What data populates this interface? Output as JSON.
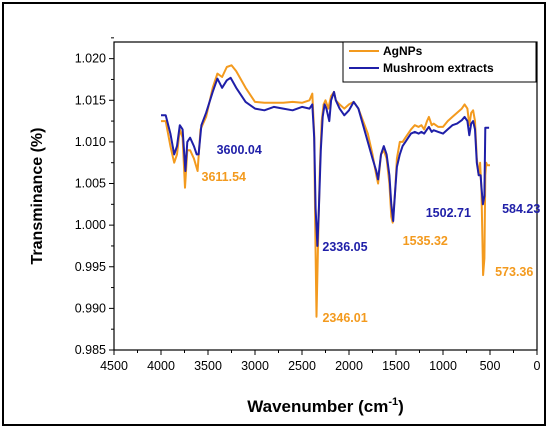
{
  "chart_data": {
    "type": "line",
    "xlabel": "Wavenumber (cm",
    "xlabel_sup": "-1",
    "xlabel_close": ")",
    "ylabel": "Transminance (%)",
    "xlim": [
      4500,
      0
    ],
    "ylim": [
      0.985,
      1.022
    ],
    "x_ticks": [
      4500,
      4000,
      3500,
      3000,
      2500,
      2000,
      1500,
      1000,
      500,
      0
    ],
    "x_tick_labels": [
      "4500",
      "4000",
      "3500",
      "3000",
      "2500",
      "2000",
      "1500",
      "1000",
      "500",
      "0"
    ],
    "y_ticks": [
      0.985,
      0.99,
      0.995,
      1.0,
      1.005,
      1.01,
      1.015,
      1.02
    ],
    "y_tick_labels": [
      "0.985",
      "0.990",
      "0.995",
      "1.000",
      "1.005",
      "1.010",
      "1.015",
      "1.020"
    ],
    "legend_position": "top-right",
    "series": [
      {
        "name": "AgNPs",
        "color": "#F39A1E",
        "points": [
          [
            4000,
            1.0125
          ],
          [
            3950,
            1.0125
          ],
          [
            3900,
            1.0095
          ],
          [
            3860,
            1.0075
          ],
          [
            3830,
            1.0085
          ],
          [
            3800,
            1.0115
          ],
          [
            3770,
            1.0105
          ],
          [
            3745,
            1.0045
          ],
          [
            3720,
            1.009
          ],
          [
            3690,
            1.009
          ],
          [
            3650,
            1.008
          ],
          [
            3611,
            1.0065
          ],
          [
            3580,
            1.0115
          ],
          [
            3520,
            1.013
          ],
          [
            3450,
            1.0165
          ],
          [
            3400,
            1.0182
          ],
          [
            3350,
            1.0178
          ],
          [
            3300,
            1.019
          ],
          [
            3250,
            1.0192
          ],
          [
            3200,
            1.0185
          ],
          [
            3100,
            1.0165
          ],
          [
            3000,
            1.0148
          ],
          [
            2900,
            1.0147
          ],
          [
            2700,
            1.0147
          ],
          [
            2600,
            1.0148
          ],
          [
            2500,
            1.0147
          ],
          [
            2420,
            1.015
          ],
          [
            2390,
            1.0158
          ],
          [
            2370,
            1.011
          ],
          [
            2360,
            1.0
          ],
          [
            2346,
            0.989
          ],
          [
            2330,
            0.9975
          ],
          [
            2310,
            1.007
          ],
          [
            2290,
            1.0125
          ],
          [
            2270,
            1.0145
          ],
          [
            2250,
            1.015
          ],
          [
            2220,
            1.014
          ],
          [
            2190,
            1.0155
          ],
          [
            2160,
            1.016
          ],
          [
            2140,
            1.015
          ],
          [
            2100,
            1.0145
          ],
          [
            2050,
            1.014
          ],
          [
            2000,
            1.0145
          ],
          [
            1950,
            1.0148
          ],
          [
            1900,
            1.014
          ],
          [
            1850,
            1.0125
          ],
          [
            1800,
            1.011
          ],
          [
            1750,
            1.0085
          ],
          [
            1710,
            1.006
          ],
          [
            1690,
            1.005
          ],
          [
            1660,
            1.0085
          ],
          [
            1630,
            1.009
          ],
          [
            1600,
            1.008
          ],
          [
            1570,
            1.005
          ],
          [
            1550,
            1.001
          ],
          [
            1535,
            1.0003
          ],
          [
            1510,
            1.004
          ],
          [
            1490,
            1.008
          ],
          [
            1460,
            1.01
          ],
          [
            1430,
            1.01
          ],
          [
            1400,
            1.0105
          ],
          [
            1370,
            1.011
          ],
          [
            1340,
            1.0115
          ],
          [
            1300,
            1.012
          ],
          [
            1260,
            1.0118
          ],
          [
            1230,
            1.012
          ],
          [
            1200,
            1.0115
          ],
          [
            1170,
            1.0125
          ],
          [
            1150,
            1.013
          ],
          [
            1120,
            1.012
          ],
          [
            1100,
            1.0122
          ],
          [
            1050,
            1.0118
          ],
          [
            1000,
            1.0118
          ],
          [
            950,
            1.0125
          ],
          [
            900,
            1.013
          ],
          [
            850,
            1.0135
          ],
          [
            800,
            1.014
          ],
          [
            770,
            1.0145
          ],
          [
            740,
            1.014
          ],
          [
            720,
            1.012
          ],
          [
            700,
            1.0135
          ],
          [
            680,
            1.0138
          ],
          [
            660,
            1.0125
          ],
          [
            640,
            1.008
          ],
          [
            620,
            1.006
          ],
          [
            605,
            1.0075
          ],
          [
            590,
            1.004
          ],
          [
            573,
            0.994
          ],
          [
            560,
            0.996
          ],
          [
            550,
            1.006
          ],
          [
            540,
            1.0075
          ],
          [
            530,
            1.0072
          ],
          [
            500,
            1.0072
          ]
        ]
      },
      {
        "name": "Mushroom extracts",
        "color": "#1F1FA8",
        "points": [
          [
            4000,
            1.0132
          ],
          [
            3950,
            1.0132
          ],
          [
            3900,
            1.011
          ],
          [
            3860,
            1.0085
          ],
          [
            3830,
            1.0095
          ],
          [
            3800,
            1.012
          ],
          [
            3770,
            1.0115
          ],
          [
            3740,
            1.0065
          ],
          [
            3720,
            1.01
          ],
          [
            3690,
            1.0105
          ],
          [
            3650,
            1.0095
          ],
          [
            3620,
            1.0085
          ],
          [
            3600,
            1.0085
          ],
          [
            3570,
            1.012
          ],
          [
            3520,
            1.0135
          ],
          [
            3450,
            1.016
          ],
          [
            3400,
            1.0176
          ],
          [
            3350,
            1.0165
          ],
          [
            3300,
            1.0174
          ],
          [
            3260,
            1.0177
          ],
          [
            3200,
            1.0165
          ],
          [
            3100,
            1.0148
          ],
          [
            3000,
            1.014
          ],
          [
            2900,
            1.0138
          ],
          [
            2800,
            1.0142
          ],
          [
            2700,
            1.014
          ],
          [
            2600,
            1.0138
          ],
          [
            2500,
            1.0142
          ],
          [
            2420,
            1.014
          ],
          [
            2390,
            1.0145
          ],
          [
            2370,
            1.0105
          ],
          [
            2355,
            1.002
          ],
          [
            2336,
            0.9975
          ],
          [
            2320,
            1.002
          ],
          [
            2300,
            1.009
          ],
          [
            2280,
            1.013
          ],
          [
            2260,
            1.0145
          ],
          [
            2240,
            1.014
          ],
          [
            2210,
            1.0125
          ],
          [
            2190,
            1.015
          ],
          [
            2160,
            1.016
          ],
          [
            2140,
            1.015
          ],
          [
            2100,
            1.014
          ],
          [
            2050,
            1.0132
          ],
          [
            2000,
            1.0138
          ],
          [
            1950,
            1.0148
          ],
          [
            1900,
            1.014
          ],
          [
            1850,
            1.012
          ],
          [
            1800,
            1.01
          ],
          [
            1750,
            1.008
          ],
          [
            1710,
            1.0065
          ],
          [
            1690,
            1.0055
          ],
          [
            1660,
            1.0085
          ],
          [
            1630,
            1.0095
          ],
          [
            1600,
            1.0085
          ],
          [
            1570,
            1.006
          ],
          [
            1550,
            1.0025
          ],
          [
            1530,
            1.0005
          ],
          [
            1510,
            1.004
          ],
          [
            1490,
            1.007
          ],
          [
            1460,
            1.0085
          ],
          [
            1430,
            1.0095
          ],
          [
            1400,
            1.01
          ],
          [
            1370,
            1.0105
          ],
          [
            1340,
            1.011
          ],
          [
            1300,
            1.0112
          ],
          [
            1260,
            1.011
          ],
          [
            1230,
            1.0112
          ],
          [
            1200,
            1.011
          ],
          [
            1170,
            1.0115
          ],
          [
            1150,
            1.0118
          ],
          [
            1120,
            1.0112
          ],
          [
            1100,
            1.0114
          ],
          [
            1050,
            1.0112
          ],
          [
            1000,
            1.011
          ],
          [
            950,
            1.0115
          ],
          [
            900,
            1.012
          ],
          [
            850,
            1.0122
          ],
          [
            800,
            1.0126
          ],
          [
            770,
            1.013
          ],
          [
            740,
            1.0125
          ],
          [
            720,
            1.0108
          ],
          [
            700,
            1.0122
          ],
          [
            680,
            1.0125
          ],
          [
            660,
            1.0115
          ],
          [
            640,
            1.0075
          ],
          [
            620,
            1.006
          ],
          [
            600,
            1.006
          ],
          [
            590,
            1.0045
          ],
          [
            575,
            1.0025
          ],
          [
            560,
            1.0035
          ],
          [
            550,
            1.0117
          ],
          [
            530,
            1.0117
          ],
          [
            510,
            1.0117
          ]
        ]
      }
    ],
    "annotations": [
      {
        "text": "3600.04",
        "x": 3600.04,
        "series": "Mushroom extracts",
        "color": "#1F1FA8"
      },
      {
        "text": "3611.54",
        "x": 3611.54,
        "series": "AgNPs",
        "color": "#F39A1E"
      },
      {
        "text": "2336.05",
        "x": 2336.05,
        "series": "Mushroom extracts",
        "color": "#1F1FA8"
      },
      {
        "text": "2346.01",
        "x": 2346.01,
        "series": "AgNPs",
        "color": "#F39A1E"
      },
      {
        "text": "1502.71",
        "x": 1502.71,
        "series": "Mushroom extracts",
        "color": "#1F1FA8"
      },
      {
        "text": "1535.32",
        "x": 1535.32,
        "series": "AgNPs",
        "color": "#F39A1E"
      },
      {
        "text": "584.23",
        "x": 584.23,
        "series": "Mushroom extracts",
        "color": "#1F1FA8"
      },
      {
        "text": "573.36",
        "x": 573.36,
        "series": "AgNPs",
        "color": "#F39A1E"
      }
    ]
  }
}
